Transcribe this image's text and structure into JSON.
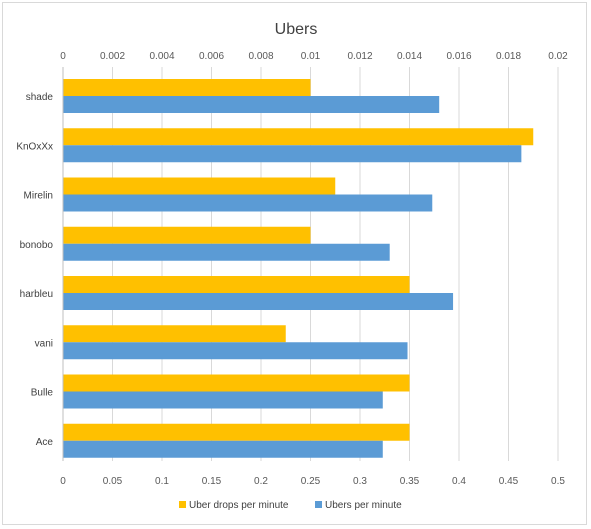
{
  "chart_data": {
    "type": "bar",
    "orientation": "horizontal",
    "title": "Ubers",
    "categories": [
      "shade",
      "KnOxXx",
      "Mirelin",
      "bonobo",
      "harbleu",
      "vani",
      "Bulle",
      "Ace"
    ],
    "series": [
      {
        "name": "Uber drops per minute",
        "axis": "top",
        "color": "#FFC000",
        "values": [
          0.01,
          0.019,
          0.011,
          0.01,
          0.014,
          0.009,
          0.014,
          0.014
        ]
      },
      {
        "name": "Ubers per minute",
        "axis": "bottom",
        "color": "#5B9BD5",
        "values": [
          0.38,
          0.463,
          0.373,
          0.33,
          0.394,
          0.348,
          0.323,
          0.323
        ]
      }
    ],
    "top_axis": {
      "range": [
        0,
        0.02
      ],
      "ticks": [
        "0",
        "0.002",
        "0.004",
        "0.006",
        "0.008",
        "0.01",
        "0.012",
        "0.014",
        "0.016",
        "0.018",
        "0.02"
      ]
    },
    "bottom_axis": {
      "range": [
        0,
        0.5
      ],
      "ticks": [
        "0",
        "0.05",
        "0.1",
        "0.15",
        "0.2",
        "0.25",
        "0.3",
        "0.35",
        "0.4",
        "0.45",
        "0.5"
      ]
    },
    "grid": true,
    "legend_position": "bottom"
  }
}
